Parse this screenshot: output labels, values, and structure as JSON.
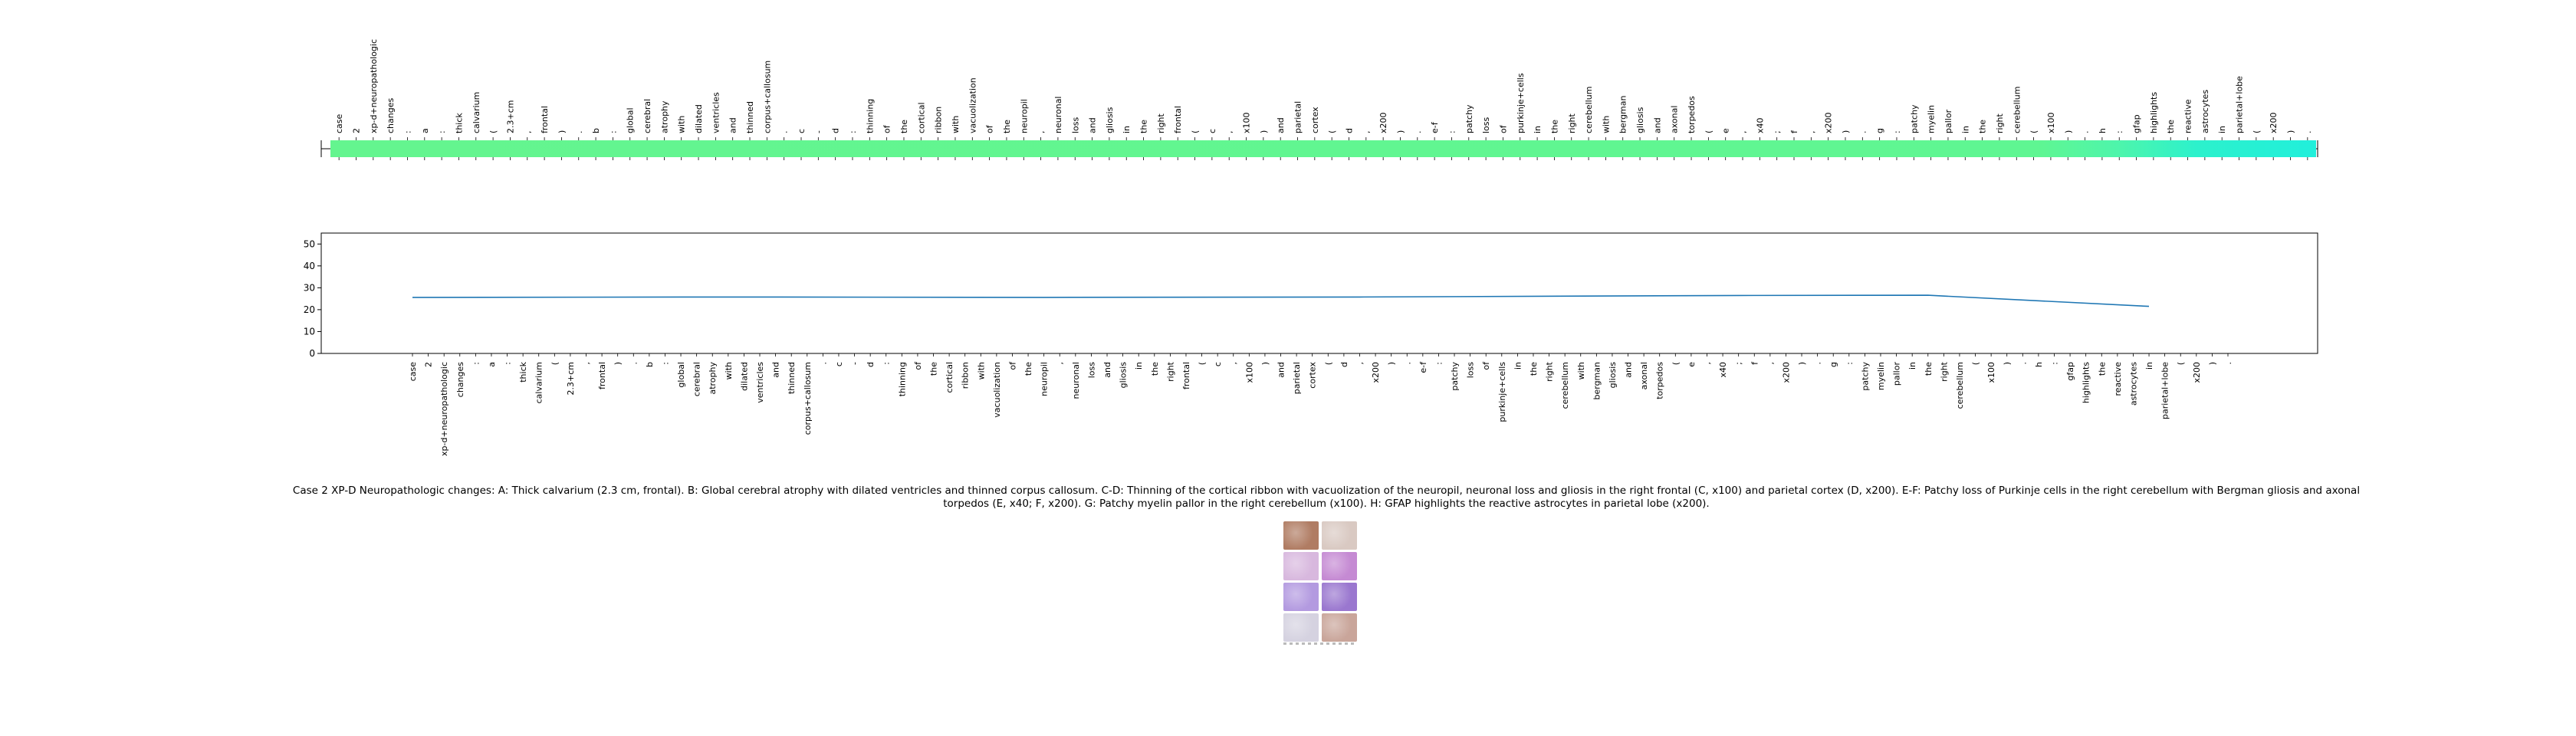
{
  "caption": "Case 2 XP-D Neuropathologic changes: A: Thick calvarium (2.3 cm, frontal). B: Global cerebral atrophy with dilated ventricles and thinned corpus callosum. C-D: Thinning of the cortical ribbon with vacuolization of the neuropil, neuronal loss and gliosis in the right frontal (C, x100) and parietal cortex (D, x200). E-F: Patchy loss of Purkinje cells in the right cerebellum with Bergman gliosis and axonal torpedos (E, x40; F, x200). G: Patchy myelin pallor in the right cerebellum (x100). H: GFAP highlights the reactive astrocytes in parietal lobe (x200).",
  "thumbnail": {
    "panel_colors": [
      "#b07c63",
      "#d9c9c2",
      "#d8b8de",
      "#c58ad3",
      "#b39ae0",
      "#9a77cf",
      "#d5d2e0",
      "#c9a59a"
    ]
  },
  "chart_data": [
    {
      "type": "heatmap",
      "colormap": "green-to-cyan",
      "tokens": [
        "case",
        "2",
        "xp-d+neuropathologic",
        "changes",
        ":",
        "a",
        ":",
        "thick",
        "calvarium",
        "(",
        "2.3+cm",
        ",",
        "frontal",
        ")",
        ".",
        "b",
        ":",
        "global",
        "cerebral",
        "atrophy",
        "with",
        "dilated",
        "ventricles",
        "and",
        "thinned",
        "corpus+callosum",
        ".",
        "c",
        "-",
        "d",
        ":",
        "thinning",
        "of",
        "the",
        "cortical",
        "ribbon",
        "with",
        "vacuolization",
        "of",
        "the",
        "neuropil",
        ",",
        "neuronal",
        "loss",
        "and",
        "gliosis",
        "in",
        "the",
        "right",
        "frontal",
        "(",
        "c",
        ",",
        "x100",
        ")",
        "and",
        "parietal",
        "cortex",
        "(",
        "d",
        ",",
        "x200",
        ")",
        ".",
        "e-f",
        ":",
        "patchy",
        "loss",
        "of",
        "purkinje+cells",
        "in",
        "the",
        "right",
        "cerebellum",
        "with",
        "bergman",
        "gliosis",
        "and",
        "axonal",
        "torpedos",
        "(",
        "e",
        ",",
        "x40",
        ";",
        "f",
        ",",
        "x200",
        ")",
        ".",
        "g",
        ":",
        "patchy",
        "myelin",
        "pallor",
        "in",
        "the",
        "right",
        "cerebellum",
        "(",
        "x100",
        ")",
        ".",
        "h",
        ":",
        "gfap",
        "highlights",
        "the",
        "reactive",
        "astrocytes",
        "in",
        "parietal+lobe",
        "(",
        "x200",
        ")",
        "."
      ]
    },
    {
      "type": "line",
      "ylim": [
        0,
        55
      ],
      "yticks": [
        0,
        10,
        20,
        30,
        40,
        50
      ],
      "tokens": [
        "case",
        "2",
        "xp-d+neuropathologic",
        "changes",
        ":",
        "a",
        ":",
        "thick",
        "calvarium",
        "(",
        "2.3+cm",
        ",",
        "frontal",
        ")",
        ".",
        "b",
        ":",
        "global",
        "cerebral",
        "atrophy",
        "with",
        "dilated",
        "ventricles",
        "and",
        "thinned",
        "corpus+callosum",
        ".",
        "c",
        "-",
        "d",
        ":",
        "thinning",
        "of",
        "the",
        "cortical",
        "ribbon",
        "with",
        "vacuolization",
        "of",
        "the",
        "neuropil",
        ",",
        "neuronal",
        "loss",
        "and",
        "gliosis",
        "in",
        "the",
        "right",
        "frontal",
        "(",
        "c",
        ",",
        "x100",
        ")",
        "and",
        "parietal",
        "cortex",
        "(",
        "d",
        ",",
        "x200",
        ")",
        ".",
        "e-f",
        ":",
        "patchy",
        "loss",
        "of",
        "purkinje+cells",
        "in",
        "the",
        "right",
        "cerebellum",
        "with",
        "bergman",
        "gliosis",
        "and",
        "axonal",
        "torpedos",
        "(",
        "e",
        ",",
        "x40",
        ";",
        "f",
        ",",
        "x200",
        ")",
        ".",
        "g",
        ":",
        "patchy",
        "myelin",
        "pallor",
        "in",
        "the",
        "right",
        "cerebellum",
        "(",
        "x100",
        ")",
        ".",
        "h",
        ":",
        "gfap",
        "highlights",
        "the",
        "reactive",
        "astrocytes",
        "in",
        "parietal+lobe",
        "(",
        "x200",
        ")",
        "."
      ],
      "series": [
        {
          "color": "#1f77b4",
          "points": [
            [
              0,
              25.6
            ],
            [
              20,
              25.8
            ],
            [
              40,
              25.6
            ],
            [
              60,
              25.8
            ],
            [
              84,
              26.5
            ],
            [
              96,
              26.6
            ],
            [
              110,
              21.5
            ]
          ]
        }
      ]
    }
  ]
}
